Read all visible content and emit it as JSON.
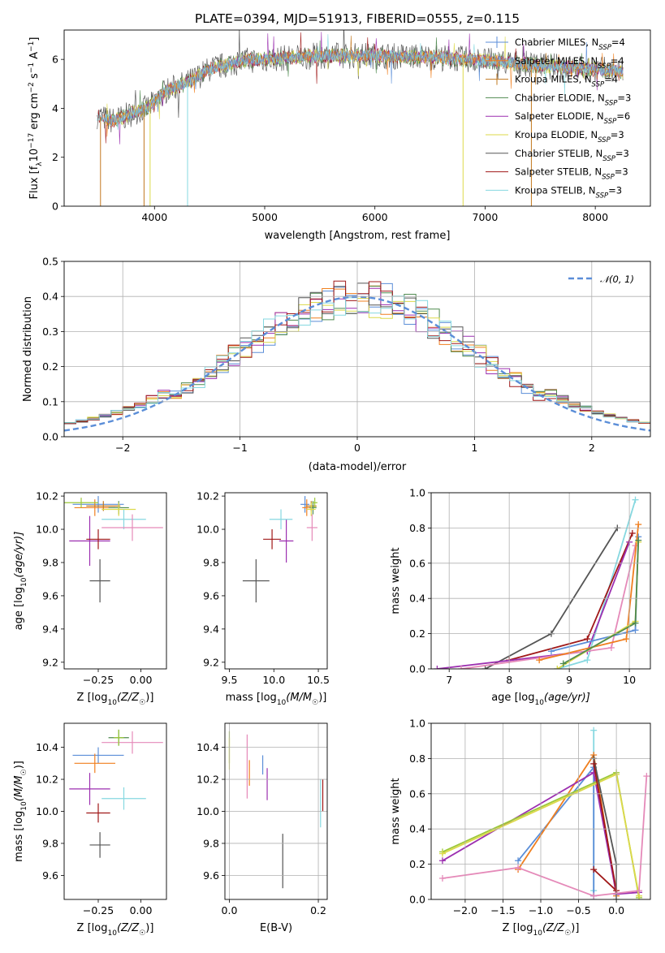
{
  "title": "PLATE=0394, MJD=51913, FIBERID=0555, z=0.115",
  "colors": {
    "chabrier_miles": "#5b8ed8",
    "salpeter_miles": "#f07f1f",
    "kroupa_miles": "#c2781f",
    "chabrier_elodie": "#4f8a4f",
    "salpeter_elodie": "#9c2fb0",
    "kroupa_elodie": "#dcd94a",
    "chabrier_stelib": "#555555",
    "salpeter_stelib": "#a01818",
    "kroupa_stelib": "#86d8e0",
    "chabrier_extra": "#9cc838",
    "pink_extra": "#e58ab9",
    "normal_curve": "#5b8ed8"
  },
  "chart_data": [
    {
      "id": "spectrum",
      "type": "line",
      "xlabel": "wavelength [Angstrom, rest frame]",
      "ylabel_parts": [
        "Flux [f",
        "λ",
        "10",
        "−17",
        " erg cm",
        "−2",
        " s",
        "−1",
        " A",
        "−1",
        "]"
      ],
      "xlim": [
        3180,
        8500
      ],
      "ylim": [
        0,
        7.2
      ],
      "xticks": [
        "4000",
        "5000",
        "6000",
        "7000",
        "8000"
      ],
      "yticks": [
        "0",
        "2",
        "4",
        "6"
      ],
      "continuum": [
        [
          3480,
          3.7
        ],
        [
          3600,
          3.5
        ],
        [
          3700,
          3.6
        ],
        [
          3800,
          3.8
        ],
        [
          3950,
          4.05
        ],
        [
          4100,
          4.7
        ],
        [
          4300,
          5.05
        ],
        [
          4500,
          5.6
        ],
        [
          4800,
          5.95
        ],
        [
          5000,
          6.0
        ],
        [
          5500,
          6.15
        ],
        [
          6000,
          6.15
        ],
        [
          6500,
          6.1
        ],
        [
          7000,
          5.95
        ],
        [
          7500,
          5.75
        ],
        [
          8000,
          5.6
        ],
        [
          8250,
          5.5
        ]
      ],
      "legend": [
        {
          "label": "Chabrier MILES, N",
          "sub": "SSP",
          "suffix": "=4"
        },
        {
          "label": "Salpeter MILES, N",
          "sub": "SSP",
          "suffix": "=4"
        },
        {
          "label": "Kroupa MILES, N",
          "sub": "SSP",
          "suffix": "=4"
        },
        {
          "label": "Chabrier ELODIE, N",
          "sub": "SSP",
          "suffix": "=3"
        },
        {
          "label": "Salpeter ELODIE, N",
          "sub": "SSP",
          "suffix": "=6"
        },
        {
          "label": "Kroupa ELODIE, N",
          "sub": "SSP",
          "suffix": "=3"
        },
        {
          "label": "Chabrier STELIB, N",
          "sub": "SSP",
          "suffix": "=3"
        },
        {
          "label": "Salpeter STELIB, N",
          "sub": "SSP",
          "suffix": "=3"
        },
        {
          "label": "Kroupa STELIB, N",
          "sub": "SSP",
          "suffix": "=3"
        }
      ]
    },
    {
      "id": "residuals",
      "type": "histogram",
      "xlabel": "(data-model)/error",
      "ylabel": "Normed distribution",
      "xlim": [
        -2.5,
        2.5
      ],
      "ylim": [
        0,
        0.5
      ],
      "xticks": [
        "−2",
        "−1",
        "0",
        "1",
        "2"
      ],
      "yticks": [
        "0.0",
        "0.1",
        "0.2",
        "0.3",
        "0.4",
        "0.5"
      ],
      "legend": "𝒩(0, 1)",
      "bin_width": 0.1
    },
    {
      "id": "age_vs_Z",
      "type": "errorbar",
      "xlabel_parts": [
        "Z [log",
        "10",
        "(Z/Z",
        "☉",
        ")]"
      ],
      "ylabel_parts": [
        "age  [log",
        "10",
        "(age/yr)]"
      ],
      "xlim": [
        -0.45,
        0.15
      ],
      "ylim": [
        9.16,
        10.22
      ],
      "xticks": [
        [
          "−0.25",
          -0.25
        ],
        [
          "0.00",
          0.0
        ]
      ],
      "yticks": [
        [
          "9.2",
          9.2
        ],
        [
          "9.4",
          9.4
        ],
        [
          "9.6",
          9.6
        ],
        [
          "9.8",
          9.8
        ],
        [
          "10.0",
          10.0
        ],
        [
          "10.2",
          10.2
        ]
      ],
      "points": [
        {
          "c": "chabrier_miles",
          "x": -0.25,
          "xe": 0.15,
          "y": 10.15,
          "ye": 0.05
        },
        {
          "c": "salpeter_miles",
          "x": -0.27,
          "xe": 0.12,
          "y": 10.13,
          "ye": 0.05
        },
        {
          "c": "kroupa_miles",
          "x": -0.22,
          "xe": 0.1,
          "y": 10.14,
          "ye": 0.03
        },
        {
          "c": "chabrier_elodie",
          "x": -0.13,
          "xe": 0.06,
          "y": 10.13,
          "ye": 0.04
        },
        {
          "c": "salpeter_elodie",
          "x": -0.3,
          "xe": 0.12,
          "y": 9.93,
          "ye": 0.15
        },
        {
          "c": "kroupa_elodie",
          "x": -0.13,
          "xe": 0.1,
          "y": 10.12,
          "ye": 0.04
        },
        {
          "c": "chabrier_stelib",
          "x": -0.24,
          "xe": 0.06,
          "y": 9.69,
          "ye": 0.13
        },
        {
          "c": "salpeter_stelib",
          "x": -0.25,
          "xe": 0.07,
          "y": 9.94,
          "ye": 0.06
        },
        {
          "c": "kroupa_stelib",
          "x": -0.1,
          "xe": 0.13,
          "y": 10.06,
          "ye": 0.06
        },
        {
          "c": "pink_extra",
          "x": -0.05,
          "xe": 0.18,
          "y": 10.01,
          "ye": 0.08
        },
        {
          "c": "chabrier_extra",
          "x": -0.35,
          "xe": 0.1,
          "y": 10.16,
          "ye": 0.03
        }
      ]
    },
    {
      "id": "age_vs_mass",
      "type": "errorbar",
      "xlabel_parts": [
        "mass [log",
        "10",
        "(M/M",
        "☉",
        ")]"
      ],
      "xlim": [
        9.45,
        10.6
      ],
      "ylim": [
        9.16,
        10.22
      ],
      "xticks": [
        [
          "9.5",
          9.5
        ],
        [
          "10.0",
          10.0
        ],
        [
          "10.5",
          10.5
        ]
      ],
      "yticks": [
        [
          "9.2",
          9.2
        ],
        [
          "9.4",
          9.4
        ],
        [
          "9.6",
          9.6
        ],
        [
          "9.8",
          9.8
        ],
        [
          "10.0",
          10.0
        ],
        [
          "10.2",
          10.2
        ]
      ],
      "points": [
        {
          "c": "chabrier_miles",
          "x": 10.35,
          "xe": 0.05,
          "y": 10.15,
          "ye": 0.05
        },
        {
          "c": "salpeter_miles",
          "x": 10.37,
          "xe": 0.05,
          "y": 10.13,
          "ye": 0.05
        },
        {
          "c": "kroupa_miles",
          "x": 10.42,
          "xe": 0.06,
          "y": 10.14,
          "ye": 0.03
        },
        {
          "c": "chabrier_elodie",
          "x": 10.44,
          "xe": 0.04,
          "y": 10.13,
          "ye": 0.04
        },
        {
          "c": "salpeter_elodie",
          "x": 10.14,
          "xe": 0.08,
          "y": 9.93,
          "ye": 0.13
        },
        {
          "c": "kroupa_elodie",
          "x": 10.42,
          "xe": 0.05,
          "y": 10.12,
          "ye": 0.04
        },
        {
          "c": "chabrier_stelib",
          "x": 9.8,
          "xe": 0.15,
          "y": 9.69,
          "ye": 0.13
        },
        {
          "c": "salpeter_stelib",
          "x": 9.98,
          "xe": 0.1,
          "y": 9.94,
          "ye": 0.06
        },
        {
          "c": "kroupa_stelib",
          "x": 10.08,
          "xe": 0.13,
          "y": 10.06,
          "ye": 0.06
        },
        {
          "c": "pink_extra",
          "x": 10.43,
          "xe": 0.06,
          "y": 10.01,
          "ye": 0.08
        },
        {
          "c": "chabrier_extra",
          "x": 10.46,
          "xe": 0.03,
          "y": 10.16,
          "ye": 0.03
        }
      ]
    },
    {
      "id": "weight_vs_age",
      "type": "line",
      "xlabel_parts": [
        "age  [log",
        "10",
        "(age/yr)]"
      ],
      "ylabel": "mass weight",
      "xlim": [
        6.7,
        10.35
      ],
      "ylim": [
        0,
        1
      ],
      "xticks": [
        [
          "7",
          7
        ],
        [
          "8",
          8
        ],
        [
          "9",
          9
        ],
        [
          "10",
          10
        ]
      ],
      "yticks": [
        [
          "0.0",
          0
        ],
        [
          "0.2",
          0.2
        ],
        [
          "0.4",
          0.4
        ],
        [
          "0.6",
          0.6
        ],
        [
          "0.8",
          0.8
        ],
        [
          "1.0",
          1.0
        ]
      ],
      "series": [
        {
          "c": "chabrier_stelib",
          "pts": [
            [
              7.6,
              0
            ],
            [
              8.7,
              0.2
            ],
            [
              9.8,
              0.8
            ]
          ]
        },
        {
          "c": "kroupa_stelib",
          "pts": [
            [
              8.8,
              0
            ],
            [
              9.3,
              0.05
            ],
            [
              10.1,
              0.96
            ]
          ]
        },
        {
          "c": "salpeter_stelib",
          "pts": [
            [
              8,
              0.05
            ],
            [
              9.3,
              0.17
            ],
            [
              10.05,
              0.77
            ]
          ]
        },
        {
          "c": "salpeter_elodie",
          "pts": [
            [
              6.8,
              0
            ],
            [
              9.3,
              0.1
            ],
            [
              10,
              0.72
            ]
          ]
        },
        {
          "c": "pink_extra",
          "pts": [
            [
              7.2,
              0
            ],
            [
              9.7,
              0.12
            ],
            [
              10.1,
              0.7
            ]
          ]
        },
        {
          "c": "chabrier_miles",
          "pts": [
            [
              8.7,
              0.1
            ],
            [
              10.1,
              0.22
            ],
            [
              10.15,
              0.75
            ]
          ]
        },
        {
          "c": "salpeter_miles",
          "pts": [
            [
              8.5,
              0.05
            ],
            [
              9.95,
              0.17
            ],
            [
              10.15,
              0.82
            ]
          ]
        },
        {
          "c": "kroupa_elodie",
          "pts": [
            [
              8.8,
              0
            ],
            [
              10.1,
              0.27
            ],
            [
              10.15,
              0.72
            ]
          ]
        },
        {
          "c": "chabrier_elodie",
          "pts": [
            [
              8.9,
              0.03
            ],
            [
              10.1,
              0.26
            ],
            [
              10.15,
              0.73
            ]
          ]
        }
      ]
    },
    {
      "id": "mass_vs_Z",
      "type": "errorbar",
      "xlabel_parts": [
        "Z [log",
        "10",
        "(Z/Z",
        "☉",
        ")]"
      ],
      "ylabel_parts": [
        "mass [log",
        "10",
        "(M/M",
        "☉",
        ")]"
      ],
      "xlim": [
        -0.45,
        0.15
      ],
      "ylim": [
        9.45,
        10.55
      ],
      "xticks": [
        [
          "−0.25",
          -0.25
        ],
        [
          "0.00",
          0.0
        ]
      ],
      "yticks": [
        [
          "9.6",
          9.6
        ],
        [
          "9.8",
          9.8
        ],
        [
          "10.0",
          10.0
        ],
        [
          "10.2",
          10.2
        ],
        [
          "10.4",
          10.4
        ]
      ],
      "points": [
        {
          "c": "chabrier_miles",
          "x": -0.25,
          "xe": 0.15,
          "y": 10.35,
          "ye": 0.05
        },
        {
          "c": "salpeter_miles",
          "x": -0.27,
          "xe": 0.12,
          "y": 10.3,
          "ye": 0.06
        },
        {
          "c": "chabrier_elodie",
          "x": -0.13,
          "xe": 0.06,
          "y": 10.46,
          "ye": 0.05
        },
        {
          "c": "salpeter_elodie",
          "x": -0.3,
          "xe": 0.12,
          "y": 10.14,
          "ye": 0.1
        },
        {
          "c": "chabrier_stelib",
          "x": -0.24,
          "xe": 0.06,
          "y": 9.79,
          "ye": 0.08
        },
        {
          "c": "salpeter_stelib",
          "x": -0.25,
          "xe": 0.07,
          "y": 9.99,
          "ye": 0.06
        },
        {
          "c": "kroupa_stelib",
          "x": -0.1,
          "xe": 0.13,
          "y": 10.08,
          "ye": 0.07
        },
        {
          "c": "pink_extra",
          "x": -0.05,
          "xe": 0.18,
          "y": 10.43,
          "ye": 0.07
        },
        {
          "c": "chabrier_extra",
          "x": -0.13,
          "xe": 0.03,
          "y": 10.46,
          "ye": 0.05
        }
      ]
    },
    {
      "id": "mass_vs_ebv",
      "type": "errorbar",
      "xlabel": "E(B-V)",
      "xlim": [
        -0.01,
        0.22
      ],
      "ylim": [
        9.45,
        10.55
      ],
      "xticks": [
        [
          "0.0",
          0.0
        ],
        [
          "0.2",
          0.2
        ]
      ],
      "yticks": [
        [
          "9.6",
          9.6
        ],
        [
          "9.8",
          9.8
        ],
        [
          "10.0",
          10.0
        ],
        [
          "10.2",
          10.2
        ],
        [
          "10.4",
          10.4
        ]
      ],
      "points": [
        {
          "c": "chabrier_miles",
          "x": 0.075,
          "xe": 0,
          "y": 10.29,
          "ye": 0.06
        },
        {
          "c": "salpeter_miles",
          "x": 0.045,
          "xe": 0,
          "y": 10.24,
          "ye": 0.08
        },
        {
          "c": "salpeter_elodie",
          "x": 0.085,
          "xe": 0,
          "y": 10.17,
          "ye": 0.1
        },
        {
          "c": "pink_extra",
          "x": 0.04,
          "xe": 0,
          "y": 10.28,
          "ye": 0.2
        },
        {
          "c": "chabrier_stelib",
          "x": 0.12,
          "xe": 0,
          "y": 9.69,
          "ye": 0.17
        },
        {
          "c": "salpeter_stelib",
          "x": 0.21,
          "xe": 0,
          "y": 10.1,
          "ye": 0.1
        },
        {
          "c": "kroupa_stelib",
          "x": 0.205,
          "xe": 0,
          "y": 10.05,
          "ye": 0.15
        },
        {
          "c": "chabrier_extra",
          "x": 0.0,
          "xe": 0,
          "y": 10.4,
          "ye": 0.1
        },
        {
          "c": "kroupa_elodie",
          "x": 0.0,
          "xe": 0,
          "y": 10.36,
          "ye": 0.1
        }
      ]
    },
    {
      "id": "weight_vs_Z",
      "type": "line",
      "xlabel_parts": [
        "Z [log",
        "10",
        "(Z/Z",
        "☉",
        ")]"
      ],
      "ylabel": "mass weight",
      "xlim": [
        -2.45,
        0.45
      ],
      "ylim": [
        0,
        1
      ],
      "xticks": [
        [
          "−2.0",
          -2
        ],
        [
          "−1.5",
          -1.5
        ],
        [
          "−1.0",
          -1
        ],
        [
          "−0.5",
          -0.5
        ],
        [
          "0.0",
          0
        ]
      ],
      "yticks": [
        [
          "0.0",
          0
        ],
        [
          "0.2",
          0.2
        ],
        [
          "0.4",
          0.4
        ],
        [
          "0.6",
          0.6
        ],
        [
          "0.8",
          0.8
        ],
        [
          "1.0",
          1.0
        ]
      ],
      "series": [
        {
          "c": "kroupa_stelib",
          "pts": [
            [
              -0.3,
              0
            ],
            [
              -0.3,
              0.96
            ],
            [
              -0.3,
              0.05
            ]
          ]
        },
        {
          "c": "chabrier_miles",
          "pts": [
            [
              -1.3,
              0.22
            ],
            [
              -0.3,
              0.75
            ],
            [
              -0.3,
              0.02
            ]
          ]
        },
        {
          "c": "salpeter_miles",
          "pts": [
            [
              -1.3,
              0.17
            ],
            [
              -0.3,
              0.82
            ],
            [
              0,
              0.02
            ]
          ]
        },
        {
          "c": "salpeter_elodie",
          "pts": [
            [
              -2.3,
              0.22
            ],
            [
              -0.3,
              0.72
            ],
            [
              0,
              0.03
            ],
            [
              0.3,
              0.04
            ]
          ]
        },
        {
          "c": "chabrier_extra",
          "pts": [
            [
              -2.3,
              0.27
            ],
            [
              0,
              0.72
            ],
            [
              0.3,
              0.01
            ]
          ]
        },
        {
          "c": "kroupa_elodie",
          "pts": [
            [
              -2.3,
              0.26
            ],
            [
              0,
              0.71
            ],
            [
              0.3,
              0.02
            ]
          ]
        },
        {
          "c": "chabrier_stelib",
          "pts": [
            [
              -0.3,
              0.8
            ],
            [
              0,
              0.2
            ],
            [
              0,
              0
            ]
          ]
        },
        {
          "c": "salpeter_stelib",
          "pts": [
            [
              -0.3,
              0.77
            ],
            [
              0,
              0.05
            ],
            [
              -0.3,
              0.17
            ]
          ]
        },
        {
          "c": "pink_extra",
          "pts": [
            [
              -2.3,
              0.12
            ],
            [
              -1.3,
              0.18
            ],
            [
              -0.3,
              0.02
            ],
            [
              0.3,
              0.05
            ],
            [
              0.4,
              0.7
            ]
          ]
        }
      ]
    }
  ]
}
